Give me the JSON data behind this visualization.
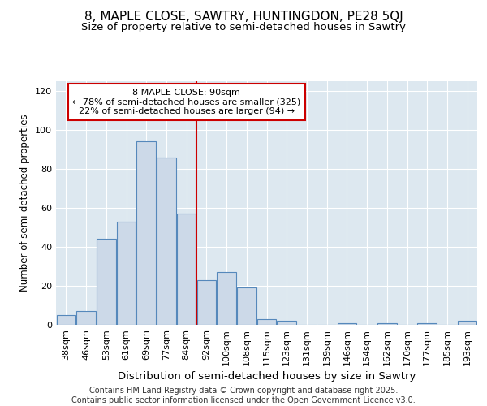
{
  "title1": "8, MAPLE CLOSE, SAWTRY, HUNTINGDON, PE28 5QJ",
  "title2": "Size of property relative to semi-detached houses in Sawtry",
  "xlabel": "Distribution of semi-detached houses by size in Sawtry",
  "ylabel": "Number of semi-detached properties",
  "categories": [
    "38sqm",
    "46sqm",
    "53sqm",
    "61sqm",
    "69sqm",
    "77sqm",
    "84sqm",
    "92sqm",
    "100sqm",
    "108sqm",
    "115sqm",
    "123sqm",
    "131sqm",
    "139sqm",
    "146sqm",
    "154sqm",
    "162sqm",
    "170sqm",
    "177sqm",
    "185sqm",
    "193sqm"
  ],
  "values": [
    5,
    7,
    44,
    53,
    94,
    86,
    57,
    23,
    27,
    19,
    3,
    2,
    0,
    0,
    1,
    0,
    1,
    0,
    1,
    0,
    2
  ],
  "bar_color": "#ccd9e8",
  "bar_edge_color": "#5588bb",
  "vline_color": "#cc0000",
  "vline_index": 7,
  "annotation_title": "8 MAPLE CLOSE: 90sqm",
  "annotation_line1": "← 78% of semi-detached houses are smaller (325)",
  "annotation_line2": "22% of semi-detached houses are larger (94) →",
  "annotation_box_color": "#ffffff",
  "annotation_box_edge": "#cc0000",
  "ylim": [
    0,
    125
  ],
  "yticks": [
    0,
    20,
    40,
    60,
    80,
    100,
    120
  ],
  "plot_bg_color": "#dde8f0",
  "fig_bg_color": "#ffffff",
  "footer": "Contains HM Land Registry data © Crown copyright and database right 2025.\nContains public sector information licensed under the Open Government Licence v3.0.",
  "title1_fontsize": 11,
  "title2_fontsize": 9.5,
  "xlabel_fontsize": 9.5,
  "ylabel_fontsize": 8.5,
  "tick_fontsize": 8,
  "footer_fontsize": 7,
  "annot_fontsize": 8
}
